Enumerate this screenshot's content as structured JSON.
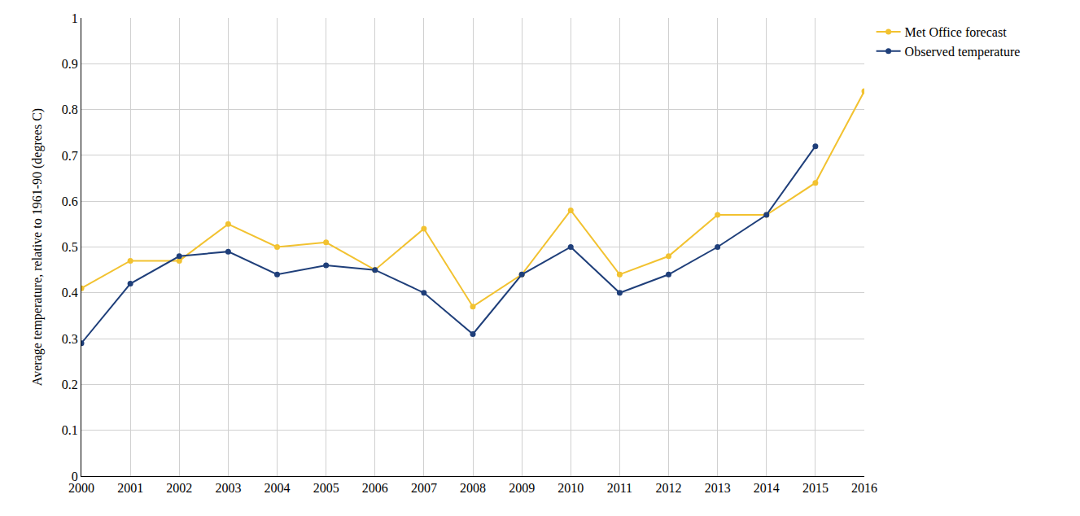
{
  "chart_data": {
    "type": "line",
    "y_label": "Average temperature, relative to 1961-90 (degrees C)",
    "x": [
      2000,
      2001,
      2002,
      2003,
      2004,
      2005,
      2006,
      2007,
      2008,
      2009,
      2010,
      2011,
      2012,
      2013,
      2014,
      2015,
      2016
    ],
    "series": [
      {
        "name": "Met Office forecast",
        "color": "#f2c230",
        "marker": "circle",
        "values": [
          0.41,
          0.47,
          0.47,
          0.55,
          0.5,
          0.51,
          0.45,
          0.54,
          0.37,
          0.44,
          0.58,
          0.44,
          0.48,
          0.57,
          0.57,
          0.64,
          0.84
        ]
      },
      {
        "name": "Observed temperature",
        "color": "#1f3f7a",
        "marker": "circle",
        "values": [
          0.29,
          0.42,
          0.48,
          0.49,
          0.44,
          0.46,
          0.45,
          0.4,
          0.31,
          0.44,
          0.5,
          0.4,
          0.44,
          0.5,
          0.57,
          0.72,
          null
        ]
      }
    ],
    "xlim": [
      2000,
      2016
    ],
    "xticks": [
      2000,
      2001,
      2002,
      2003,
      2004,
      2005,
      2006,
      2007,
      2008,
      2009,
      2010,
      2011,
      2012,
      2013,
      2014,
      2015,
      2016
    ],
    "ylim": [
      0,
      1
    ],
    "yticks": [
      0,
      0.1,
      0.2,
      0.3,
      0.4,
      0.5,
      0.6,
      0.7,
      0.8,
      0.9,
      1
    ],
    "grid": true,
    "legend": "top right"
  }
}
